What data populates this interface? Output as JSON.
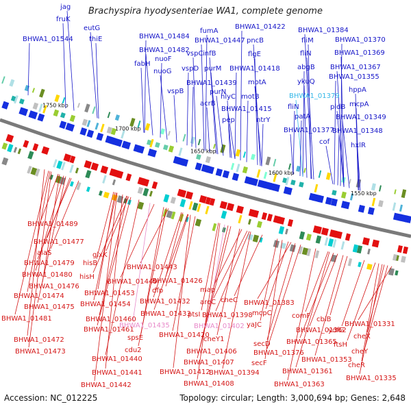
{
  "title": "Brachyspira hyodysenteriae WA1, complete genome",
  "footer": {
    "accession": "Accession: NC_012225",
    "summary": "Topology: circular; Length: 3,000,694 bp; Genes: 2,648"
  },
  "colors": {
    "forward_label": "#1515c8",
    "reverse_label": "#d41515",
    "highlight_forward": "#33b7e8",
    "highlight_reverse": "#e889c9",
    "backbone": "#7a7a7a"
  },
  "kbp_ticks": [
    "1750 kbp",
    "1700 kbp",
    "1650 kbp",
    "1600 kbp",
    "1550 kbp"
  ],
  "forward_labels": [
    "jag",
    "fruK",
    "BHWA1_01544",
    "eutG",
    "thiE",
    "BHWA1_01484",
    "BHWA1_01482",
    "fabH",
    "nuoF",
    "nuoG",
    "vspC",
    "fumA",
    "infB",
    "BHWA1_01447",
    "vspD",
    "purM",
    "vspB",
    "BHWA1_01439",
    "purN",
    "acrB",
    "BHWA1_01422",
    "pncB",
    "flgE",
    "BHWA1_01418",
    "motA",
    "hlyC",
    "motB",
    "BHWA1_01415",
    "pep",
    "ntrY",
    "BHWA1_01384",
    "fliM",
    "BHWA1_01370",
    "fliN",
    "BHWA1_01369",
    "abgB",
    "BHWA1_01367",
    "ykuQ",
    "BHWA1_01355",
    "BHWA1_01379",
    "hppA",
    "fliN",
    "pldB",
    "mcpA",
    "patA",
    "BHWA1_01349",
    "BHWA1_01377",
    "BHWA1_01348",
    "cof",
    "hxlR"
  ],
  "reverse_labels": [
    "BHWA1_01489",
    "BHWA1_01477",
    "alaS",
    "BHWA1_01479",
    "hisB",
    "glxK",
    "BHWA1_01480",
    "hisH",
    "BHWA1_01476",
    "BHWA1_01474",
    "BHWA1_01475",
    "BHWA1_01481",
    "BHWA1_01472",
    "BHWA1_01473",
    "BHWA1_01443",
    "BHWA1_01449",
    "BHWA1_01453",
    "BHWA1_01454",
    "BHWA1_01460",
    "BHWA1_01461",
    "BHWA1_01426",
    "dfp",
    "BHWA1_01432",
    "BHWA1_01433",
    "BHWA1_01435",
    "spsE",
    "cdu2",
    "BHWA1_01440",
    "BHWA1_01441",
    "BHWA1_01442",
    "map",
    "aroC",
    "ptsI",
    "BHWA1_01420",
    "cheC",
    "BHWA1_01398",
    "BHWA1_01402",
    "cheY1",
    "BHWA1_01406",
    "BHWA1_01407",
    "BHWA1_01412",
    "BHWA1_01408",
    "BHWA1_01394",
    "BHWA1_01383",
    "yaJC",
    "mcpC",
    "secD",
    "BHWA1_01376",
    "secF",
    "comF",
    "BHWA1_01362",
    "BHWA1_01365",
    "cbiB",
    "ydfG",
    "ftsH",
    "BHWA1_01331",
    "cheX",
    "cheY",
    "BHWA1_01353",
    "BHWA1_01361",
    "cheR",
    "BHWA1_01335",
    "BHWA1_01363"
  ]
}
